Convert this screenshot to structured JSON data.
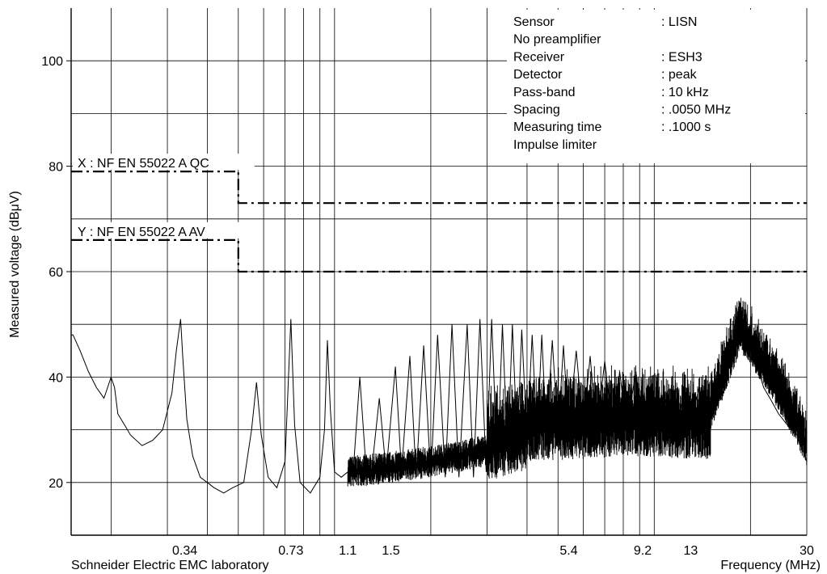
{
  "chart_data": {
    "type": "line",
    "xlabel": "Frequency (MHz)",
    "ylabel": "Measured voltage (dBμV)",
    "footer": "Schneider Electric EMC laboratory",
    "x_scale": "log",
    "xlim": [
      0.15,
      30
    ],
    "ylim": [
      10,
      110
    ],
    "grid": true,
    "x_ticks": [
      {
        "value": 0.34,
        "label": "0.34"
      },
      {
        "value": 0.73,
        "label": "0.73"
      },
      {
        "value": 1.1,
        "label": "1.1"
      },
      {
        "value": 1.5,
        "label": "1.5"
      },
      {
        "value": 5.4,
        "label": "5.4"
      },
      {
        "value": 9.2,
        "label": "9.2"
      },
      {
        "value": 13,
        "label": "13"
      },
      {
        "value": 30,
        "label": "30"
      }
    ],
    "y_ticks": [
      {
        "value": 20,
        "label": "20"
      },
      {
        "value": 40,
        "label": "40"
      },
      {
        "value": 60,
        "label": "60"
      },
      {
        "value": 80,
        "label": "80"
      },
      {
        "value": 100,
        "label": "100"
      }
    ],
    "limits": [
      {
        "label": "X : NF EN 55022 A QC",
        "points": [
          [
            0.15,
            79
          ],
          [
            0.5,
            79
          ],
          [
            0.5,
            73
          ],
          [
            30,
            73
          ]
        ]
      },
      {
        "label": "Y : NF EN 55022 A AV",
        "points": [
          [
            0.15,
            66
          ],
          [
            0.5,
            66
          ],
          [
            0.5,
            60
          ],
          [
            30,
            60
          ]
        ]
      }
    ],
    "info": [
      {
        "key": "Sensor",
        "value": ": LISN"
      },
      {
        "key": "No preamplifier",
        "value": ""
      },
      {
        "key": "Receiver",
        "value": ": ESH3"
      },
      {
        "key": "Detector",
        "value": ": peak"
      },
      {
        "key": "Pass-band",
        "value": ": 10 kHz"
      },
      {
        "key": "Spacing",
        "value": ": .0050 MHz"
      },
      {
        "key": "Measuring time",
        "value": ": .1000 s"
      },
      {
        "key": "Impulse limiter",
        "value": ""
      }
    ],
    "series": [
      {
        "points": [
          [
            0.15,
            48
          ],
          [
            0.152,
            48
          ],
          [
            0.16,
            45
          ],
          [
            0.17,
            41
          ],
          [
            0.18,
            38
          ],
          [
            0.19,
            36
          ],
          [
            0.195,
            38
          ],
          [
            0.2,
            40
          ],
          [
            0.205,
            38
          ],
          [
            0.21,
            33
          ],
          [
            0.22,
            31
          ],
          [
            0.23,
            29
          ],
          [
            0.25,
            27
          ],
          [
            0.27,
            28
          ],
          [
            0.29,
            30
          ],
          [
            0.31,
            37
          ],
          [
            0.32,
            45
          ],
          [
            0.33,
            51
          ],
          [
            0.335,
            44
          ],
          [
            0.345,
            32
          ],
          [
            0.36,
            25
          ],
          [
            0.38,
            21
          ],
          [
            0.4,
            20
          ],
          [
            0.42,
            19
          ],
          [
            0.45,
            18
          ],
          [
            0.48,
            19
          ],
          [
            0.52,
            20
          ],
          [
            0.55,
            30
          ],
          [
            0.57,
            39
          ],
          [
            0.59,
            29
          ],
          [
            0.62,
            21
          ],
          [
            0.66,
            19
          ],
          [
            0.7,
            24
          ],
          [
            0.73,
            51
          ],
          [
            0.75,
            31
          ],
          [
            0.78,
            20
          ],
          [
            0.84,
            18
          ],
          [
            0.9,
            21
          ],
          [
            0.93,
            30
          ],
          [
            0.95,
            47
          ],
          [
            0.97,
            34
          ],
          [
            1.0,
            22
          ],
          [
            1.05,
            21
          ],
          [
            1.1,
            22
          ],
          [
            1.15,
            24
          ],
          [
            1.2,
            40
          ],
          [
            1.25,
            24
          ],
          [
            1.3,
            21
          ],
          [
            1.38,
            36
          ],
          [
            1.45,
            22
          ],
          [
            1.55,
            42
          ],
          [
            1.62,
            22
          ],
          [
            1.72,
            44
          ],
          [
            1.8,
            21
          ],
          [
            1.9,
            46
          ],
          [
            2.0,
            21
          ],
          [
            2.1,
            48
          ],
          [
            2.22,
            21
          ],
          [
            2.33,
            50
          ],
          [
            2.45,
            21
          ],
          [
            2.6,
            50
          ],
          [
            2.72,
            21
          ],
          [
            2.85,
            51
          ],
          [
            2.98,
            22
          ],
          [
            3.1,
            51
          ],
          [
            3.23,
            23
          ],
          [
            3.35,
            50
          ],
          [
            3.48,
            25
          ],
          [
            3.6,
            50
          ],
          [
            3.73,
            27
          ],
          [
            3.85,
            49
          ],
          [
            4.0,
            28
          ],
          [
            4.15,
            48
          ],
          [
            4.3,
            28
          ],
          [
            4.45,
            48
          ],
          [
            4.6,
            29
          ],
          [
            4.8,
            47
          ],
          [
            5.0,
            29
          ],
          [
            5.2,
            46
          ],
          [
            5.4,
            30
          ],
          [
            5.7,
            45
          ],
          [
            6.0,
            30
          ],
          [
            6.3,
            44
          ],
          [
            6.6,
            30
          ],
          [
            7.0,
            43
          ],
          [
            7.4,
            30
          ],
          [
            7.8,
            41
          ],
          [
            8.2,
            30
          ],
          [
            8.7,
            40
          ],
          [
            9.2,
            30
          ],
          [
            9.8,
            38
          ],
          [
            10.4,
            29
          ],
          [
            11.0,
            37
          ],
          [
            11.7,
            30
          ],
          [
            12.4,
            37
          ],
          [
            13.0,
            31
          ],
          [
            13.8,
            38
          ],
          [
            14.6,
            33
          ],
          [
            15.5,
            40
          ],
          [
            16.5,
            37
          ],
          [
            17.3,
            44
          ],
          [
            18.2,
            49
          ],
          [
            19.0,
            48
          ],
          [
            20.0,
            46
          ],
          [
            21.0,
            42
          ],
          [
            22.0,
            38
          ],
          [
            23.0,
            36
          ],
          [
            24.5,
            33
          ],
          [
            26.0,
            31
          ],
          [
            28.0,
            29
          ],
          [
            30.0,
            24
          ]
        ]
      }
    ]
  }
}
